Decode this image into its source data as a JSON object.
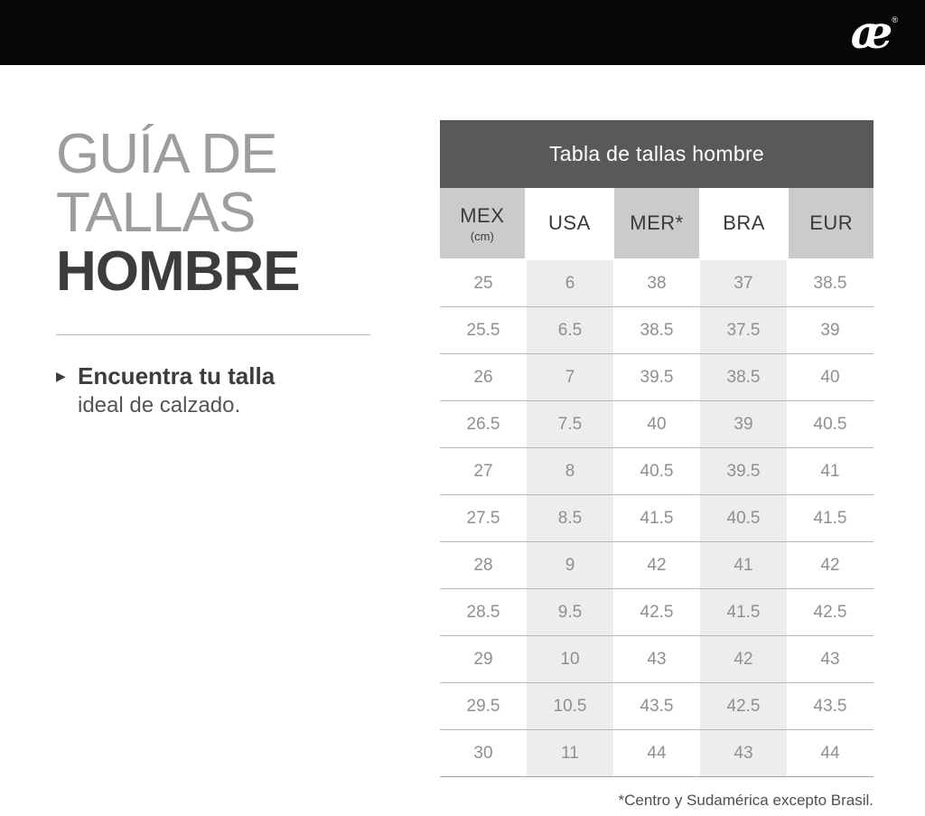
{
  "topbar": {
    "logo_char": "æ",
    "reg_mark": "®"
  },
  "intro": {
    "title_line1": "GUÍA DE",
    "title_line2": "TALLAS",
    "title_line3": "HOMBRE",
    "marker": "▶",
    "tagline_bold": "Encuentra tu talla",
    "tagline_regular": "ideal de calzado."
  },
  "table": {
    "title": "Tabla de tallas hombre",
    "columns": [
      {
        "label": "MEX",
        "sub": "(cm)"
      },
      {
        "label": "USA",
        "sub": ""
      },
      {
        "label": "MER*",
        "sub": ""
      },
      {
        "label": "BRA",
        "sub": ""
      },
      {
        "label": "EUR",
        "sub": ""
      }
    ],
    "rows": [
      [
        "25",
        "6",
        "38",
        "37",
        "38.5"
      ],
      [
        "25.5",
        "6.5",
        "38.5",
        "37.5",
        "39"
      ],
      [
        "26",
        "7",
        "39.5",
        "38.5",
        "40"
      ],
      [
        "26.5",
        "7.5",
        "40",
        "39",
        "40.5"
      ],
      [
        "27",
        "8",
        "40.5",
        "39.5",
        "41"
      ],
      [
        "27.5",
        "8.5",
        "41.5",
        "40.5",
        "41.5"
      ],
      [
        "28",
        "9",
        "42",
        "41",
        "42"
      ],
      [
        "28.5",
        "9.5",
        "42.5",
        "41.5",
        "42.5"
      ],
      [
        "29",
        "10",
        "43",
        "42",
        "43"
      ],
      [
        "29.5",
        "10.5",
        "43.5",
        "42.5",
        "43.5"
      ],
      [
        "30",
        "11",
        "44",
        "43",
        "44"
      ]
    ],
    "footnote": "*Centro y Sudamérica excepto Brasil."
  },
  "colors": {
    "topbar_bg": "#070707",
    "table_header_bg": "#595959",
    "column_header_bg": "#cbcbcb",
    "stripe_bg": "#ededed",
    "divider": "#b7b7b7",
    "body_text": "#8f8f8f",
    "title_gray": "#9d9d9d",
    "title_dark": "#3c3c3c"
  }
}
